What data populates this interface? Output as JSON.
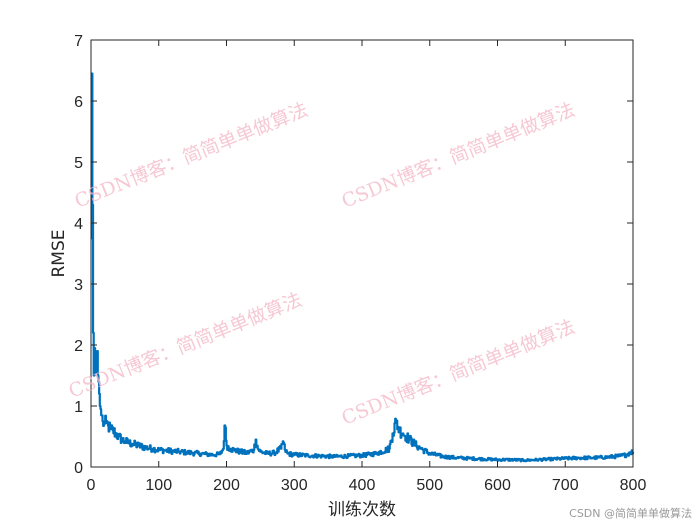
{
  "chart_data": {
    "type": "line",
    "title": "",
    "xlabel": "训练次数",
    "ylabel": "RMSE",
    "xlim": [
      0,
      800
    ],
    "ylim": [
      0,
      7
    ],
    "x_ticks": [
      0,
      100,
      200,
      300,
      400,
      500,
      600,
      700,
      800
    ],
    "y_ticks": [
      0,
      1,
      2,
      3,
      4,
      5,
      6,
      7
    ],
    "x_tick_labels": [
      "0",
      "100",
      "200",
      "300",
      "400",
      "500",
      "600",
      "700",
      "800"
    ],
    "y_tick_labels": [
      "0",
      "1",
      "2",
      "3",
      "4",
      "5",
      "6",
      "7"
    ],
    "grid": false,
    "series": [
      {
        "color": "#0072bd",
        "x": [
          0,
          1,
          2,
          3,
          4,
          5,
          6,
          7,
          8,
          9,
          10,
          11,
          12,
          13,
          14,
          15,
          17,
          19,
          22,
          25,
          28,
          32,
          36,
          40,
          45,
          50,
          55,
          60,
          70,
          80,
          90,
          100,
          110,
          120,
          130,
          140,
          150,
          160,
          170,
          180,
          190,
          195,
          197,
          200,
          205,
          210,
          220,
          230,
          240,
          243,
          246,
          250,
          260,
          270,
          280,
          283,
          286,
          290,
          300,
          320,
          340,
          360,
          380,
          400,
          420,
          440,
          445,
          450,
          455,
          460,
          465,
          470,
          480,
          490,
          500,
          520,
          540,
          560,
          580,
          600,
          620,
          640,
          660,
          680,
          700,
          720,
          740,
          760,
          780,
          790,
          795,
          800
        ],
        "y": [
          3.75,
          6.45,
          4.3,
          2.2,
          1.5,
          1.95,
          1.55,
          1.85,
          1.65,
          1.9,
          1.5,
          1.4,
          1.2,
          1.0,
          0.95,
          0.85,
          0.75,
          0.7,
          0.72,
          0.68,
          0.62,
          0.6,
          0.55,
          0.5,
          0.45,
          0.42,
          0.4,
          0.38,
          0.35,
          0.32,
          0.3,
          0.28,
          0.27,
          0.26,
          0.25,
          0.24,
          0.23,
          0.22,
          0.21,
          0.2,
          0.21,
          0.3,
          0.68,
          0.35,
          0.3,
          0.28,
          0.25,
          0.23,
          0.28,
          0.45,
          0.3,
          0.25,
          0.22,
          0.23,
          0.3,
          0.42,
          0.28,
          0.22,
          0.2,
          0.19,
          0.18,
          0.17,
          0.18,
          0.19,
          0.22,
          0.3,
          0.55,
          0.75,
          0.6,
          0.55,
          0.5,
          0.45,
          0.35,
          0.28,
          0.22,
          0.17,
          0.15,
          0.14,
          0.13,
          0.12,
          0.12,
          0.11,
          0.12,
          0.13,
          0.14,
          0.15,
          0.15,
          0.16,
          0.18,
          0.2,
          0.24,
          0.25
        ]
      }
    ]
  },
  "watermarks": [
    "CSDN博客：简简单单做算法",
    "CSDN博客：简简单单做算法",
    "CSDN博客：简简单单做算法",
    "CSDN博客：简简单单做算法"
  ],
  "credit": "CSDN @简简单单做算法"
}
